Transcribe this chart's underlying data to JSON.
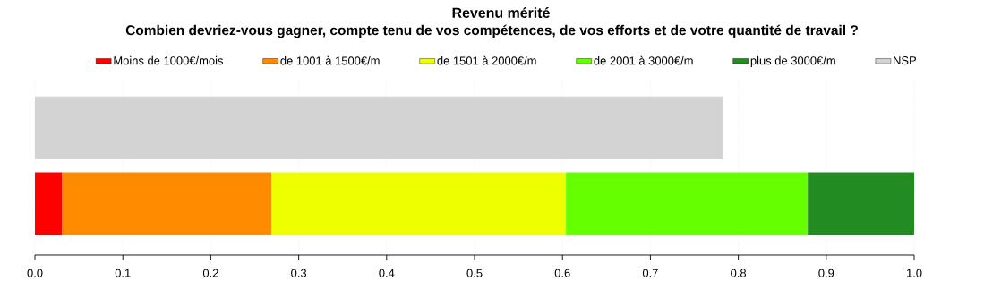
{
  "chart_data": {
    "type": "bar",
    "orientation": "horizontal",
    "stacked": true,
    "title": "Revenu mérité",
    "subtitle": "Combien devriez-vous gagner, compte tenu de vos compétences, de vos efforts et de votre quantité de travail ?",
    "categories": [
      null,
      null
    ],
    "series": [
      {
        "name": "Moins de 1000€/mois",
        "color": "#ff0000",
        "values": [
          null,
          0.031
        ]
      },
      {
        "name": "de 1001 à 1500€/m",
        "color": "#ff8c00",
        "values": [
          null,
          0.238
        ]
      },
      {
        "name": "de 1501 à 2000€/m",
        "color": "#eeff00",
        "values": [
          null,
          0.335
        ]
      },
      {
        "name": "de 2001 à 3000€/m",
        "color": "#66ff00",
        "values": [
          null,
          0.275
        ]
      },
      {
        "name": "plus de 3000€/m",
        "color": "#228b22",
        "values": [
          null,
          0.121
        ]
      },
      {
        "name": "NSP",
        "color": "#d3d3d3",
        "values": [
          0.783,
          null
        ]
      }
    ],
    "xlim": [
      0,
      1
    ],
    "xticks": [
      {
        "value": 0,
        "label": "0.0"
      },
      0.1,
      0.2,
      0.3,
      0.4,
      0.5,
      0.6,
      0.7,
      0.8,
      0.9,
      {
        "value": 1,
        "label": "1.0"
      }
    ],
    "grid": "x",
    "legend": "top"
  }
}
